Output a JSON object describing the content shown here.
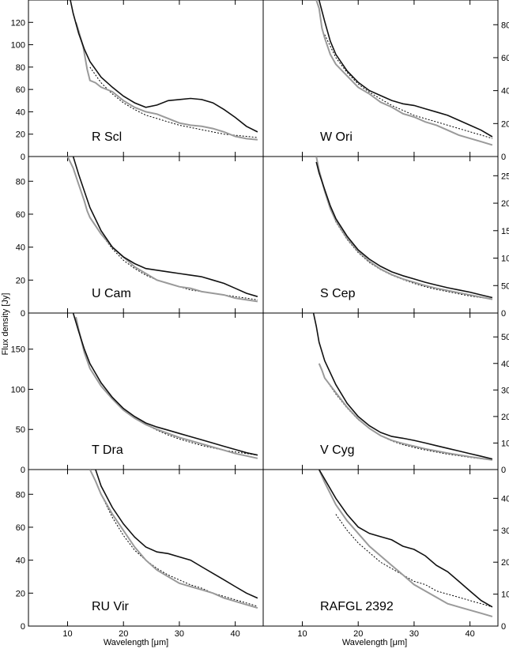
{
  "figure": {
    "xlabel": "Wavelength [μm]",
    "ylabel": "Flux density [Jy]"
  },
  "colors": {
    "observed_primary": "#111111",
    "observed_secondary": "#9a9a9a",
    "model": "#000000",
    "continuum": "#000000"
  },
  "chart_data": [
    {
      "type": "line",
      "star": "R Scl",
      "xlim": [
        3,
        45
      ],
      "ylim": [
        0,
        140
      ],
      "xticks": [
        10,
        20,
        30,
        40
      ],
      "yticks": [
        0,
        20,
        40,
        60,
        80,
        100,
        120
      ],
      "series": [
        {
          "style": "black",
          "x": [
            10.5,
            11,
            12,
            13,
            14,
            16,
            18,
            20,
            22,
            24,
            26,
            28,
            30,
            32,
            34,
            36,
            38,
            40,
            42,
            44
          ],
          "y": [
            140,
            128,
            110,
            96,
            85,
            71,
            62,
            54,
            48,
            44,
            46,
            50,
            51,
            52,
            51,
            48,
            42,
            35,
            27,
            22
          ]
        },
        {
          "style": "gray",
          "x": [
            11.5,
            12,
            12.8,
            13.5,
            14,
            15,
            16,
            18,
            20,
            22,
            24,
            26,
            28,
            30,
            32,
            34,
            36,
            38,
            40,
            42,
            44
          ],
          "y": [
            120,
            112,
            98,
            78,
            68,
            66,
            62,
            58,
            50,
            44,
            40,
            38,
            34,
            30,
            28,
            27,
            25,
            22,
            18,
            16,
            15
          ]
        },
        {
          "style": "dotted",
          "x": [
            14,
            16,
            18,
            20,
            22,
            24,
            26,
            28,
            30,
            32,
            34,
            36,
            38,
            40,
            42,
            44
          ],
          "y": [
            80,
            66,
            56,
            48,
            42,
            37,
            34,
            31,
            28,
            26,
            24,
            22,
            20,
            19,
            18,
            17
          ]
        }
      ]
    },
    {
      "type": "line",
      "star": "W Ori",
      "xlim": [
        3,
        45
      ],
      "ylim": [
        0,
        95
      ],
      "xticks": [
        10,
        20,
        30,
        40
      ],
      "yticks": [
        0,
        20,
        40,
        60,
        80
      ],
      "series": [
        {
          "style": "black",
          "x": [
            13,
            14,
            15,
            16,
            18,
            20,
            22,
            24,
            26,
            28,
            30,
            32,
            34,
            36,
            38,
            40,
            42,
            44
          ],
          "y": [
            95,
            82,
            70,
            62,
            52,
            45,
            40,
            37,
            34,
            32,
            31,
            29,
            27,
            25,
            22,
            19,
            16,
            12
          ]
        },
        {
          "style": "gray",
          "x": [
            12.5,
            13,
            13.5,
            14,
            15,
            16,
            18,
            20,
            22,
            24,
            26,
            28,
            30,
            32,
            34,
            36,
            38,
            40,
            42,
            44
          ],
          "y": [
            95,
            90,
            78,
            72,
            62,
            56,
            49,
            42,
            38,
            33,
            30,
            26,
            24,
            21,
            19,
            16,
            13,
            11,
            9,
            7
          ]
        },
        {
          "style": "dotted",
          "x": [
            14,
            16,
            18,
            20,
            22,
            24,
            26,
            28,
            30,
            32,
            34,
            36,
            38,
            40,
            42,
            44
          ],
          "y": [
            74,
            60,
            51,
            44,
            39,
            35,
            31,
            28,
            25,
            23,
            21,
            19,
            17,
            15,
            13,
            11
          ]
        }
      ]
    },
    {
      "type": "line",
      "star": "U Cam",
      "xlim": [
        3,
        45
      ],
      "ylim": [
        0,
        95
      ],
      "xticks": [
        10,
        20,
        30,
        40
      ],
      "yticks": [
        0,
        20,
        40,
        60,
        80
      ],
      "series": [
        {
          "style": "black",
          "x": [
            11,
            12,
            13,
            14,
            16,
            18,
            20,
            22,
            24,
            26,
            28,
            30,
            32,
            34,
            36,
            38,
            40,
            42,
            44
          ],
          "y": [
            95,
            84,
            74,
            64,
            50,
            40,
            34,
            30,
            27,
            26,
            25,
            24,
            23,
            22,
            20,
            18,
            15,
            12,
            10
          ]
        },
        {
          "style": "gray",
          "x": [
            10,
            11,
            12,
            13,
            13.5,
            14,
            16,
            18,
            20,
            22,
            24,
            26,
            28,
            30,
            32,
            34,
            36,
            38,
            40,
            42,
            44
          ],
          "y": [
            95,
            88,
            78,
            68,
            62,
            58,
            48,
            40,
            34,
            28,
            24,
            20,
            18,
            16,
            15,
            13,
            12,
            11,
            9,
            8,
            7
          ]
        },
        {
          "style": "dotted",
          "x": [
            14,
            16,
            18,
            20,
            22,
            24,
            26,
            28,
            30,
            32,
            34,
            36,
            38,
            40,
            42,
            44
          ],
          "y": [
            58,
            48,
            39,
            32,
            27,
            23,
            20,
            18,
            16,
            14,
            13,
            12,
            11,
            10,
            9,
            8
          ]
        }
      ]
    },
    {
      "type": "line",
      "star": "S Cep",
      "xlim": [
        3,
        45
      ],
      "ylim": [
        0,
        285
      ],
      "xticks": [
        10,
        20,
        30,
        40
      ],
      "yticks": [
        0,
        50,
        100,
        150,
        200,
        250
      ],
      "series": [
        {
          "style": "black",
          "x": [
            12.5,
            13,
            14,
            15,
            16,
            18,
            20,
            22,
            24,
            26,
            28,
            30,
            32,
            34,
            36,
            38,
            40,
            42,
            44
          ],
          "y": [
            275,
            255,
            225,
            195,
            172,
            140,
            115,
            98,
            85,
            75,
            68,
            62,
            56,
            51,
            46,
            42,
            38,
            33,
            28
          ]
        },
        {
          "style": "gray",
          "x": [
            12.5,
            13,
            14,
            15,
            16,
            18,
            20,
            22,
            24,
            26,
            28,
            30,
            32,
            34,
            36,
            38,
            40,
            42,
            44
          ],
          "y": [
            285,
            260,
            222,
            190,
            168,
            136,
            112,
            94,
            80,
            70,
            62,
            56,
            50,
            45,
            41,
            37,
            33,
            29,
            25
          ]
        },
        {
          "style": "dotted",
          "x": [
            14,
            16,
            18,
            20,
            22,
            24,
            26,
            28,
            30,
            32,
            34,
            36,
            38,
            40,
            42,
            44
          ],
          "y": [
            222,
            166,
            134,
            110,
            92,
            79,
            69,
            61,
            54,
            48,
            43,
            39,
            35,
            31,
            28,
            25
          ]
        }
      ]
    },
    {
      "type": "line",
      "star": "T Dra",
      "xlim": [
        3,
        45
      ],
      "ylim": [
        0,
        195
      ],
      "xticks": [
        10,
        20,
        30,
        40
      ],
      "yticks": [
        0,
        50,
        100,
        150
      ],
      "series": [
        {
          "style": "black",
          "x": [
            11,
            12,
            13,
            14,
            16,
            18,
            20,
            22,
            24,
            26,
            28,
            30,
            32,
            34,
            36,
            38,
            40,
            42,
            44
          ],
          "y": [
            195,
            172,
            150,
            132,
            108,
            90,
            76,
            66,
            58,
            53,
            49,
            45,
            41,
            37,
            33,
            29,
            25,
            21,
            18
          ]
        },
        {
          "style": "gray",
          "x": [
            11.5,
            12,
            13,
            14,
            16,
            18,
            20,
            22,
            24,
            26,
            28,
            30,
            32,
            34,
            36,
            38,
            40,
            42,
            44
          ],
          "y": [
            190,
            174,
            146,
            126,
            104,
            88,
            74,
            64,
            56,
            50,
            45,
            40,
            36,
            32,
            28,
            24,
            20,
            17,
            14
          ]
        },
        {
          "style": "dotted",
          "x": [
            14,
            16,
            18,
            20,
            22,
            24,
            26,
            28,
            30,
            32,
            34,
            36,
            38,
            40,
            42,
            44
          ],
          "y": [
            126,
            104,
            88,
            74,
            64,
            56,
            49,
            43,
            38,
            34,
            30,
            27,
            24,
            22,
            20,
            18
          ]
        }
      ]
    },
    {
      "type": "line",
      "star": "V Cyg",
      "xlim": [
        3,
        45
      ],
      "ylim": [
        0,
        590
      ],
      "xticks": [
        10,
        20,
        30,
        40
      ],
      "yticks": [
        0,
        100,
        200,
        300,
        400,
        500
      ],
      "series": [
        {
          "style": "black",
          "x": [
            12,
            12.5,
            13,
            14,
            16,
            18,
            20,
            22,
            24,
            26,
            28,
            30,
            32,
            34,
            36,
            38,
            40,
            42,
            44
          ],
          "y": [
            590,
            540,
            480,
            410,
            320,
            250,
            200,
            165,
            140,
            125,
            118,
            110,
            100,
            90,
            80,
            70,
            60,
            50,
            40
          ]
        },
        {
          "style": "gray",
          "x": [
            13,
            13.5,
            14,
            16,
            18,
            20,
            22,
            24,
            26,
            28,
            30,
            32,
            34,
            36,
            38,
            40,
            42,
            44
          ],
          "y": [
            400,
            375,
            345,
            290,
            235,
            190,
            155,
            128,
            110,
            98,
            88,
            78,
            70,
            62,
            55,
            48,
            42,
            36
          ]
        },
        {
          "style": "dotted",
          "x": [
            14,
            16,
            18,
            20,
            22,
            24,
            26,
            28,
            30,
            32,
            34,
            36,
            38,
            40,
            42,
            44
          ],
          "y": [
            345,
            285,
            232,
            188,
            155,
            128,
            108,
            94,
            83,
            74,
            66,
            58,
            52,
            46,
            41,
            36
          ]
        }
      ]
    },
    {
      "type": "line",
      "star": "RU Vir",
      "xlim": [
        3,
        45
      ],
      "ylim": [
        0,
        95
      ],
      "xticks": [
        10,
        20,
        30,
        40
      ],
      "yticks": [
        0,
        20,
        40,
        60,
        80
      ],
      "series": [
        {
          "style": "black",
          "x": [
            15,
            16,
            18,
            20,
            22,
            24,
            26,
            28,
            30,
            32,
            34,
            36,
            38,
            40,
            42,
            44
          ],
          "y": [
            95,
            85,
            72,
            62,
            54,
            48,
            45,
            44,
            42,
            40,
            36,
            32,
            28,
            24,
            20,
            17
          ]
        },
        {
          "style": "gray",
          "x": [
            14,
            15,
            16,
            18,
            20,
            22,
            24,
            26,
            28,
            30,
            32,
            34,
            36,
            38,
            40,
            42,
            44
          ],
          "y": [
            95,
            88,
            80,
            68,
            58,
            48,
            40,
            34,
            30,
            26,
            24,
            22,
            20,
            17,
            15,
            13,
            11
          ]
        },
        {
          "style": "dotted",
          "x": [
            16,
            18,
            20,
            22,
            24,
            26,
            28,
            30,
            32,
            34,
            36,
            38,
            40,
            42,
            44
          ],
          "y": [
            80,
            66,
            55,
            46,
            40,
            35,
            31,
            28,
            25,
            23,
            20,
            18,
            16,
            14,
            12
          ]
        }
      ]
    },
    {
      "type": "line",
      "star": "RAFGL 2392",
      "xlim": [
        3,
        45
      ],
      "ylim": [
        0,
        49
      ],
      "xticks": [
        10,
        20,
        30,
        40
      ],
      "yticks": [
        0,
        10,
        20,
        30,
        40
      ],
      "series": [
        {
          "style": "black",
          "x": [
            13,
            14,
            16,
            18,
            20,
            22,
            24,
            26,
            28,
            30,
            32,
            34,
            36,
            38,
            40,
            42,
            44
          ],
          "y": [
            49,
            46,
            40,
            35,
            31,
            29,
            28,
            27,
            25,
            24,
            22,
            19,
            17,
            14,
            11,
            8,
            6
          ]
        },
        {
          "style": "gray",
          "x": [
            13,
            14,
            16,
            18,
            20,
            22,
            24,
            26,
            28,
            30,
            32,
            34,
            36,
            38,
            40,
            42,
            44
          ],
          "y": [
            49,
            45,
            38,
            33,
            29,
            25,
            22,
            19,
            16,
            13,
            11,
            9,
            7,
            6,
            5,
            4,
            3
          ]
        },
        {
          "style": "dotted",
          "x": [
            16,
            18,
            20,
            22,
            24,
            26,
            28,
            30,
            32,
            34,
            36,
            38,
            40,
            42,
            44
          ],
          "y": [
            35,
            30,
            26,
            23,
            20,
            18,
            16,
            14,
            13,
            11,
            10,
            9,
            8,
            7,
            6
          ]
        }
      ]
    }
  ]
}
